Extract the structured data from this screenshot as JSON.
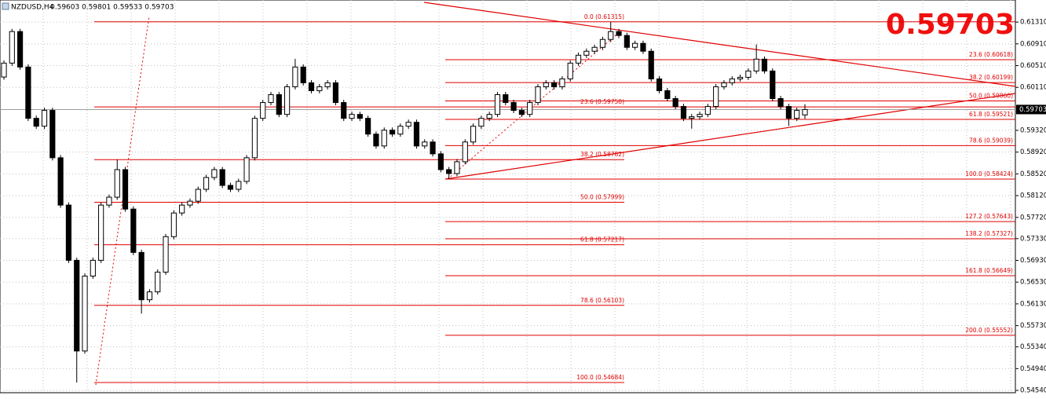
{
  "chart_data": {
    "type": "candlestick",
    "symbol": "NZDUSD,H4",
    "header_prices": "0.59603 0.59801 0.59533 0.59703",
    "last_price": {
      "value": 0.59703,
      "label": "0.59703"
    },
    "up_color": "#ffffff",
    "down_color": "#000000",
    "fib_color": "#e00000",
    "ylim": [
      0.54497,
      0.61716
    ],
    "yticks": [
      {
        "value": 0.6131,
        "label": "0.61310"
      },
      {
        "value": 0.6091,
        "label": "0.60910"
      },
      {
        "value": 0.6051,
        "label": "0.60510"
      },
      {
        "value": 0.6011,
        "label": "0.60110"
      },
      {
        "value": 0.5932,
        "label": "0.59320"
      },
      {
        "value": 0.5892,
        "label": "0.58920"
      },
      {
        "value": 0.5852,
        "label": "0.58520"
      },
      {
        "value": 0.5812,
        "label": "0.58120"
      },
      {
        "value": 0.5772,
        "label": "0.57720"
      },
      {
        "value": 0.5733,
        "label": "0.57330"
      },
      {
        "value": 0.5693,
        "label": "0.56930"
      },
      {
        "value": 0.5653,
        "label": "0.56530"
      },
      {
        "value": 0.5613,
        "label": "0.56130"
      },
      {
        "value": 0.5573,
        "label": "0.55730"
      },
      {
        "value": 0.5534,
        "label": "0.55340"
      },
      {
        "value": 0.5494,
        "label": "0.54940"
      },
      {
        "value": 0.5454,
        "label": "0.54540"
      }
    ],
    "grid": true,
    "fib_left": [
      {
        "label": "0.0 (0.61315)",
        "value": 0.61315
      },
      {
        "label": "23.6 (0.59750)",
        "value": 0.5975
      },
      {
        "label": "38.2 (0.58782)",
        "value": 0.58782
      },
      {
        "label": "50.0 (0.57999)",
        "value": 0.57999
      },
      {
        "label": "61.8 (0.57217)",
        "value": 0.57217
      },
      {
        "label": "78.6 (0.56103)",
        "value": 0.56103
      },
      {
        "label": "100.0 (0.54684)",
        "value": 0.54684
      }
    ],
    "fib_right": [
      {
        "label": "23.6 (0.60618)",
        "value": 0.60618
      },
      {
        "label": "38.2 (0.60199)",
        "value": 0.60199
      },
      {
        "label": "50.0 (0.59860)",
        "value": 0.5986
      },
      {
        "label": "61.8 (0.59521)",
        "value": 0.59521
      },
      {
        "label": "78.6 (0.59039)",
        "value": 0.59039
      },
      {
        "label": "100.0 (0.58424)",
        "value": 0.58424
      },
      {
        "label": "127.2 (0.57643)",
        "value": 0.57643
      },
      {
        "label": "138.2 (0.57327)",
        "value": 0.57327
      },
      {
        "label": "161.8 (0.56649)",
        "value": 0.56649
      },
      {
        "label": "200.0 (0.55552)",
        "value": 0.55552
      }
    ],
    "open": [
      0.603,
      0.60556,
      0.61136,
      0.60484,
      0.59541,
      0.59396,
      0.59686,
      0.58816,
      0.57946,
      0.56931,
      0.55264,
      0.56641,
      0.56931,
      0.57946,
      0.58091,
      0.58598,
      0.57873,
      0.57076,
      0.56206,
      0.56351,
      0.56714,
      0.57366,
      0.57801,
      0.57946,
      0.58018,
      0.58236,
      0.58453,
      0.58598,
      0.58308,
      0.58236,
      0.58381,
      0.58816,
      0.59541,
      0.59831,
      0.59976,
      0.59613,
      0.60121,
      0.60484,
      0.60194,
      0.60049,
      0.60121,
      0.60194,
      0.59831,
      0.59541,
      0.59613,
      0.59541,
      0.59251,
      0.59033,
      0.59323,
      0.59251,
      0.59396,
      0.59468,
      0.59033,
      0.59106,
      0.58888,
      0.58598,
      0.58526,
      0.58743,
      0.59106,
      0.59396,
      0.59541,
      0.59613,
      0.59976,
      0.59831,
      0.59686,
      0.59613,
      0.59831,
      0.60121,
      0.60194,
      0.60121,
      0.60266,
      0.60556,
      0.60701,
      0.60774,
      0.60846,
      0.60991,
      0.61136,
      0.61064,
      0.60846,
      0.60919,
      0.60774,
      0.60266,
      0.60049,
      0.59904,
      0.59759,
      0.59541,
      0.5957,
      0.59613,
      0.59759,
      0.60121,
      0.60194,
      0.60266,
      0.60295,
      0.60411,
      0.60629,
      0.60411,
      0.59904,
      0.59759,
      0.59541,
      0.59603
    ],
    "high": [
      0.60606,
      0.61186,
      0.61186,
      0.60534,
      0.59591,
      0.59736,
      0.59736,
      0.58866,
      0.57996,
      0.56981,
      0.56691,
      0.56981,
      0.57996,
      0.58141,
      0.58782,
      0.58648,
      0.57923,
      0.57126,
      0.56401,
      0.56764,
      0.57416,
      0.57851,
      0.57996,
      0.58068,
      0.58286,
      0.58503,
      0.58648,
      0.58648,
      0.58358,
      0.58431,
      0.58866,
      0.59591,
      0.59881,
      0.60026,
      0.60026,
      0.60171,
      0.60634,
      0.60534,
      0.60244,
      0.60171,
      0.60244,
      0.60244,
      0.59881,
      0.59663,
      0.59663,
      0.59591,
      0.59301,
      0.59373,
      0.59373,
      0.59446,
      0.59518,
      0.59518,
      0.59156,
      0.59156,
      0.58938,
      0.58648,
      0.58793,
      0.59156,
      0.59446,
      0.59591,
      0.59663,
      0.60026,
      0.60026,
      0.59881,
      0.59736,
      0.59881,
      0.60171,
      0.60244,
      0.60244,
      0.60316,
      0.60606,
      0.60751,
      0.60824,
      0.60896,
      0.61041,
      0.61315,
      0.61186,
      0.61114,
      0.60969,
      0.60969,
      0.60824,
      0.60316,
      0.60099,
      0.59954,
      0.59809,
      0.5962,
      0.59663,
      0.59809,
      0.60171,
      0.60244,
      0.60316,
      0.60345,
      0.60461,
      0.609,
      0.60679,
      0.60461,
      0.59954,
      0.59809,
      0.59736,
      0.59801
    ],
    "low": [
      0.6025,
      0.60506,
      0.60434,
      0.59491,
      0.59346,
      0.59346,
      0.58766,
      0.57896,
      0.56881,
      0.54684,
      0.55214,
      0.56591,
      0.56881,
      0.57896,
      0.58041,
      0.57823,
      0.57026,
      0.5595,
      0.56156,
      0.56301,
      0.56664,
      0.57316,
      0.57751,
      0.57896,
      0.57968,
      0.58186,
      0.58403,
      0.58258,
      0.58186,
      0.58186,
      0.58331,
      0.58766,
      0.59491,
      0.59781,
      0.59563,
      0.59563,
      0.60071,
      0.60144,
      0.59999,
      0.59999,
      0.60071,
      0.59781,
      0.59491,
      0.59491,
      0.59491,
      0.59201,
      0.58983,
      0.58983,
      0.59201,
      0.59201,
      0.59346,
      0.58983,
      0.58983,
      0.58838,
      0.58548,
      0.58424,
      0.58476,
      0.58693,
      0.59056,
      0.59346,
      0.59491,
      0.59563,
      0.59781,
      0.59636,
      0.59563,
      0.59563,
      0.59781,
      0.60071,
      0.60071,
      0.60071,
      0.60216,
      0.60506,
      0.60651,
      0.60724,
      0.60796,
      0.60941,
      0.61014,
      0.60796,
      0.60796,
      0.60724,
      0.60216,
      0.59999,
      0.59854,
      0.59709,
      0.59491,
      0.5935,
      0.5952,
      0.59563,
      0.59709,
      0.60071,
      0.60144,
      0.60216,
      0.60245,
      0.60361,
      0.60361,
      0.59854,
      0.59709,
      0.594,
      0.59491,
      0.59533
    ],
    "close": [
      0.60556,
      0.61136,
      0.60484,
      0.59541,
      0.59396,
      0.59686,
      0.58816,
      0.57946,
      0.56931,
      0.55264,
      0.56641,
      0.56931,
      0.57946,
      0.58091,
      0.58598,
      0.57873,
      0.57076,
      0.56206,
      0.56351,
      0.56714,
      0.57366,
      0.57801,
      0.57946,
      0.58018,
      0.58236,
      0.58453,
      0.58598,
      0.58308,
      0.58236,
      0.58381,
      0.58816,
      0.59541,
      0.59831,
      0.59976,
      0.59613,
      0.60121,
      0.60484,
      0.60194,
      0.60049,
      0.60121,
      0.60194,
      0.59831,
      0.59541,
      0.59613,
      0.59541,
      0.59251,
      0.59033,
      0.59323,
      0.59251,
      0.59396,
      0.59468,
      0.59033,
      0.59106,
      0.58888,
      0.58598,
      0.58526,
      0.58743,
      0.59106,
      0.59396,
      0.59541,
      0.59613,
      0.59976,
      0.59831,
      0.59686,
      0.59613,
      0.59831,
      0.60121,
      0.60194,
      0.60121,
      0.60266,
      0.60556,
      0.60701,
      0.60774,
      0.60846,
      0.60991,
      0.61136,
      0.61064,
      0.60846,
      0.60919,
      0.60774,
      0.60266,
      0.60049,
      0.59904,
      0.59759,
      0.59541,
      0.5957,
      0.59613,
      0.59759,
      0.60121,
      0.60194,
      0.60266,
      0.60295,
      0.60411,
      0.60629,
      0.60411,
      0.59904,
      0.59759,
      0.59541,
      0.59686,
      0.59703
    ]
  }
}
